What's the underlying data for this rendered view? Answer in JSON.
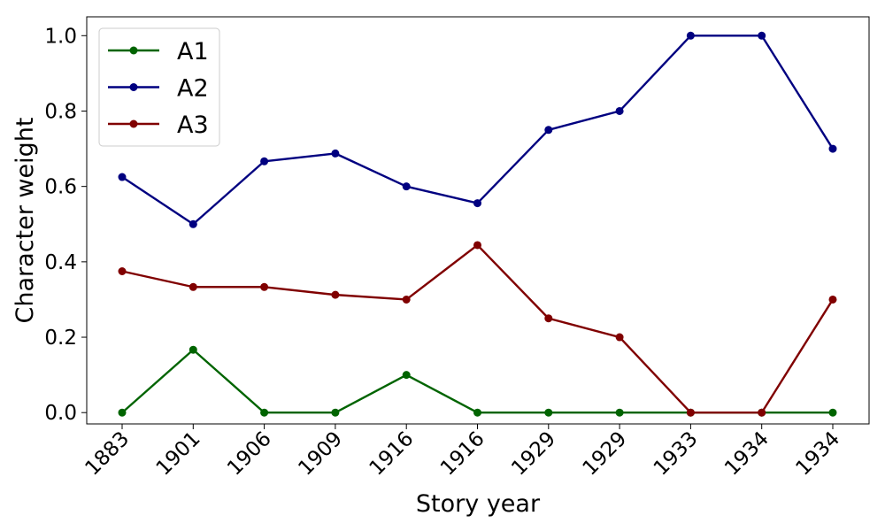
{
  "chart_data": {
    "type": "line",
    "categories": [
      "1883",
      "1901",
      "1906",
      "1909",
      "1916",
      "1916",
      "1929",
      "1929",
      "1933",
      "1934",
      "1934"
    ],
    "series": [
      {
        "name": "A1",
        "color": "#006400",
        "values": [
          0.0,
          0.1667,
          0.0,
          0.0,
          0.1,
          0.0,
          0.0,
          0.0,
          0.0,
          0.0,
          0.0
        ]
      },
      {
        "name": "A2",
        "color": "#000080",
        "values": [
          0.625,
          0.5,
          0.6667,
          0.6875,
          0.6,
          0.5556,
          0.75,
          0.8,
          1.0,
          1.0,
          0.7
        ]
      },
      {
        "name": "A3",
        "color": "#800000",
        "values": [
          0.375,
          0.3333,
          0.3333,
          0.3125,
          0.3,
          0.4444,
          0.25,
          0.2,
          0.0,
          0.0,
          0.3
        ]
      }
    ],
    "xlabel": "Story year",
    "ylabel": "Character weight",
    "ylim": [
      -0.03,
      1.05
    ],
    "yticks": [
      "0.0",
      "0.2",
      "0.4",
      "0.6",
      "0.8",
      "1.0"
    ],
    "legend": "top-left",
    "grid": false
  }
}
